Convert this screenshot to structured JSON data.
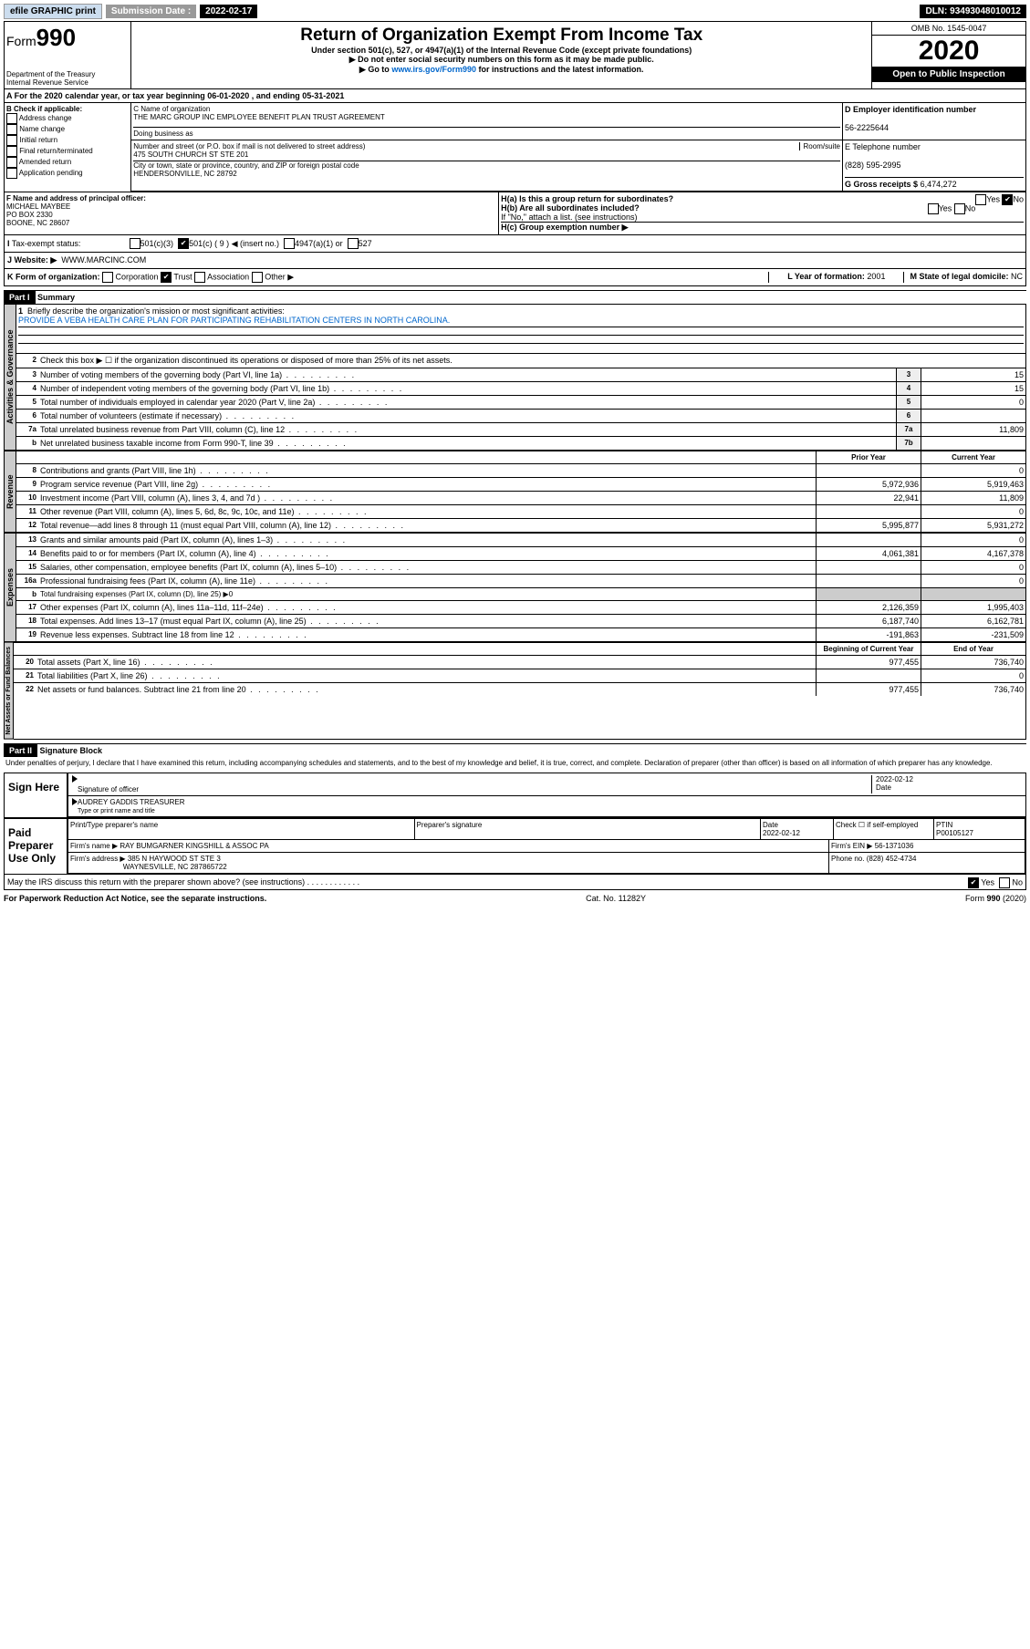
{
  "topbar": {
    "efile": "efile GRAPHIC print",
    "sub_label": "Submission Date :",
    "sub_date": "2022-02-17",
    "dln": "DLN: 93493048010012"
  },
  "header": {
    "form_word": "Form",
    "form_no": "990",
    "dept": "Department of the Treasury\nInternal Revenue Service",
    "title": "Return of Organization Exempt From Income Tax",
    "subtitle": "Under section 501(c), 527, or 4947(a)(1) of the Internal Revenue Code (except private foundations)",
    "note1": "▶ Do not enter social security numbers on this form as it may be made public.",
    "note2_pre": "▶ Go to ",
    "note2_link": "www.irs.gov/Form990",
    "note2_post": " for instructions and the latest information.",
    "omb": "OMB No. 1545-0047",
    "year": "2020",
    "public": "Open to Public Inspection"
  },
  "period": {
    "text": "For the 2020 calendar year, or tax year beginning 06-01-2020   , and ending 05-31-2021"
  },
  "boxB": {
    "title": "B Check if applicable:",
    "opts": [
      "Address change",
      "Name change",
      "Initial return",
      "Final return/terminated",
      "Amended return",
      "Application pending"
    ]
  },
  "boxC": {
    "lbl": "C Name of organization",
    "name": "THE MARC GROUP INC EMPLOYEE BENEFIT PLAN TRUST AGREEMENT",
    "dba_lbl": "Doing business as",
    "addr_lbl": "Number and street (or P.O. box if mail is not delivered to street address)",
    "room_lbl": "Room/suite",
    "addr": "475 SOUTH CHURCH ST STE 201",
    "city_lbl": "City or town, state or province, country, and ZIP or foreign postal code",
    "city": "HENDERSONVILLE, NC  28792"
  },
  "boxD": {
    "lbl": "D Employer identification number",
    "val": "56-2225644"
  },
  "boxE": {
    "lbl": "E Telephone number",
    "val": "(828) 595-2995"
  },
  "boxG": {
    "lbl": "G Gross receipts $",
    "val": "6,474,272"
  },
  "boxF": {
    "lbl": "F  Name and address of principal officer:",
    "name": "MICHAEL MAYBEE",
    "addr1": "PO BOX 2330",
    "addr2": "BOONE, NC  28607"
  },
  "boxH": {
    "a": "H(a)  Is this a group return for subordinates?",
    "b": "H(b)  Are all subordinates included?",
    "note": "If \"No,\" attach a list. (see instructions)",
    "c": "H(c)  Group exemption number ▶",
    "yes": "Yes",
    "no": "No"
  },
  "taxstatus": {
    "lbl": "Tax-exempt status:",
    "o1": "501(c)(3)",
    "o2": "501(c) ( 9 ) ◀ (insert no.)",
    "o3": "4947(a)(1) or",
    "o4": "527"
  },
  "website": {
    "lbl": "J   Website: ▶",
    "val": "WWW.MARCINC.COM"
  },
  "rowK": {
    "lbl": "K Form of organization:",
    "o1": "Corporation",
    "o2": "Trust",
    "o3": "Association",
    "o4": "Other ▶",
    "L_lbl": "L Year of formation:",
    "L_val": "2001",
    "M_lbl": "M State of legal domicile:",
    "M_val": "NC"
  },
  "part1": {
    "bar": "Part I",
    "title": "Summary",
    "l1": "Briefly describe the organization's mission or most significant activities:",
    "mission": "PROVIDE A VEBA HEALTH CARE PLAN FOR PARTICIPATING REHABILITATION CENTERS IN NORTH CAROLINA.",
    "l2": "Check this box ▶ ☐  if the organization discontinued its operations or disposed of more than 25% of its net assets.",
    "rows": [
      {
        "n": "3",
        "t": "Number of voting members of the governing body (Part VI, line 1a)",
        "b": "3",
        "v": "15"
      },
      {
        "n": "4",
        "t": "Number of independent voting members of the governing body (Part VI, line 1b)",
        "b": "4",
        "v": "15"
      },
      {
        "n": "5",
        "t": "Total number of individuals employed in calendar year 2020 (Part V, line 2a)",
        "b": "5",
        "v": "0"
      },
      {
        "n": "6",
        "t": "Total number of volunteers (estimate if necessary)",
        "b": "6",
        "v": ""
      },
      {
        "n": "7a",
        "t": "Total unrelated business revenue from Part VIII, column (C), line 12",
        "b": "7a",
        "v": "11,809"
      },
      {
        "n": "b",
        "t": "Net unrelated business taxable income from Form 990-T, line 39",
        "b": "7b",
        "v": ""
      }
    ],
    "hdr_prior": "Prior Year",
    "hdr_curr": "Current Year",
    "rev": [
      {
        "n": "8",
        "t": "Contributions and grants (Part VIII, line 1h)",
        "p": "",
        "c": "0"
      },
      {
        "n": "9",
        "t": "Program service revenue (Part VIII, line 2g)",
        "p": "5,972,936",
        "c": "5,919,463"
      },
      {
        "n": "10",
        "t": "Investment income (Part VIII, column (A), lines 3, 4, and 7d )",
        "p": "22,941",
        "c": "11,809"
      },
      {
        "n": "11",
        "t": "Other revenue (Part VIII, column (A), lines 5, 6d, 8c, 9c, 10c, and 11e)",
        "p": "",
        "c": "0"
      },
      {
        "n": "12",
        "t": "Total revenue—add lines 8 through 11 (must equal Part VIII, column (A), line 12)",
        "p": "5,995,877",
        "c": "5,931,272"
      }
    ],
    "exp": [
      {
        "n": "13",
        "t": "Grants and similar amounts paid (Part IX, column (A), lines 1–3)",
        "p": "",
        "c": "0"
      },
      {
        "n": "14",
        "t": "Benefits paid to or for members (Part IX, column (A), line 4)",
        "p": "4,061,381",
        "c": "4,167,378"
      },
      {
        "n": "15",
        "t": "Salaries, other compensation, employee benefits (Part IX, column (A), lines 5–10)",
        "p": "",
        "c": "0"
      },
      {
        "n": "16a",
        "t": "Professional fundraising fees (Part IX, column (A), line 11e)",
        "p": "",
        "c": "0"
      },
      {
        "n": "b",
        "t": "Total fundraising expenses (Part IX, column (D), line 25) ▶0",
        "p": "—",
        "c": "—"
      },
      {
        "n": "17",
        "t": "Other expenses (Part IX, column (A), lines 11a–11d, 11f–24e)",
        "p": "2,126,359",
        "c": "1,995,403"
      },
      {
        "n": "18",
        "t": "Total expenses. Add lines 13–17 (must equal Part IX, column (A), line 25)",
        "p": "6,187,740",
        "c": "6,162,781"
      },
      {
        "n": "19",
        "t": "Revenue less expenses. Subtract line 18 from line 12",
        "p": "-191,863",
        "c": "-231,509"
      }
    ],
    "hdr_beg": "Beginning of Current Year",
    "hdr_end": "End of Year",
    "net": [
      {
        "n": "20",
        "t": "Total assets (Part X, line 16)",
        "p": "977,455",
        "c": "736,740"
      },
      {
        "n": "21",
        "t": "Total liabilities (Part X, line 26)",
        "p": "",
        "c": "0"
      },
      {
        "n": "22",
        "t": "Net assets or fund balances. Subtract line 21 from line 20",
        "p": "977,455",
        "c": "736,740"
      }
    ],
    "side_act": "Activities & Governance",
    "side_rev": "Revenue",
    "side_exp": "Expenses",
    "side_net": "Net Assets or Fund Balances"
  },
  "part2": {
    "bar": "Part II",
    "title": "Signature Block",
    "declare": "Under penalties of perjury, I declare that I have examined this return, including accompanying schedules and statements, and to the best of my knowledge and belief, it is true, correct, and complete. Declaration of preparer (other than officer) is based on all information of which preparer has any knowledge.",
    "sign_here": "Sign Here",
    "sig_officer": "Signature of officer",
    "date_lbl": "Date",
    "date": "2022-02-12",
    "officer": "AUDREY GADDIS  TREASURER",
    "officer_lbl": "Type or print name and title",
    "paid": "Paid Preparer Use Only",
    "pp_name_lbl": "Print/Type preparer's name",
    "pp_sig_lbl": "Preparer's signature",
    "pp_date_lbl": "Date",
    "pp_date": "2022-02-12",
    "pp_check": "Check ☐ if self-employed",
    "ptin_lbl": "PTIN",
    "ptin": "P00105127",
    "firm_lbl": "Firm's name    ▶",
    "firm": "RAY BUMGARNER KINGSHILL & ASSOC PA",
    "ein_lbl": "Firm's EIN ▶",
    "ein": "56-1371036",
    "faddr_lbl": "Firm's address ▶",
    "faddr1": "385 N HAYWOOD ST STE 3",
    "faddr2": "WAYNESVILLE, NC  287865722",
    "phone_lbl": "Phone no.",
    "phone": "(828) 452-4734",
    "discuss": "May the IRS discuss this return with the preparer shown above? (see instructions)",
    "yes": "Yes",
    "no": "No"
  },
  "footer": {
    "left": "For Paperwork Reduction Act Notice, see the separate instructions.",
    "mid": "Cat. No. 11282Y",
    "right": "Form 990 (2020)"
  }
}
